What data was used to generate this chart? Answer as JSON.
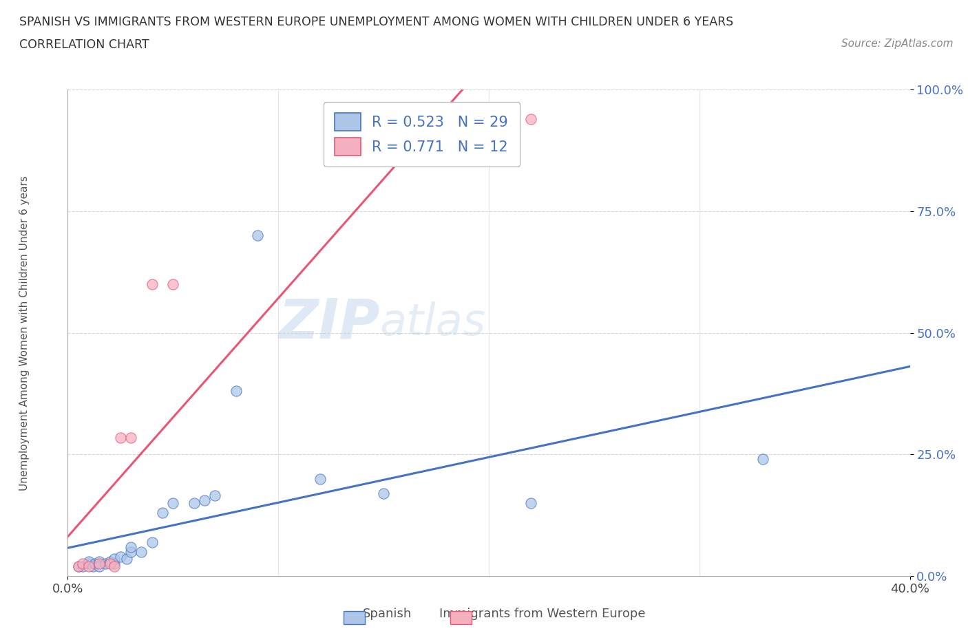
{
  "title_line1": "SPANISH VS IMMIGRANTS FROM WESTERN EUROPE UNEMPLOYMENT AMONG WOMEN WITH CHILDREN UNDER 6 YEARS",
  "title_line2": "CORRELATION CHART",
  "source": "Source: ZipAtlas.com",
  "ylabel_left": "Unemployment Among Women with Children Under 6 years",
  "xlim": [
    0.0,
    0.4
  ],
  "ylim": [
    0.0,
    1.0
  ],
  "legend_r1": "R = 0.523   N = 29",
  "legend_r2": "R = 0.771   N = 12",
  "spanish_color": "#adc6e8",
  "immigrant_color": "#f5b0c0",
  "trendline_spanish_color": "#4472c4",
  "trendline_immigrant_color": "#e85575",
  "watermark_zip": "ZIP",
  "watermark_atlas": "atlas",
  "spanish_x": [
    0.005,
    0.007,
    0.01,
    0.01,
    0.012,
    0.013,
    0.015,
    0.015,
    0.018,
    0.02,
    0.022,
    0.022,
    0.025,
    0.028,
    0.03,
    0.03,
    0.035,
    0.04,
    0.045,
    0.05,
    0.06,
    0.065,
    0.07,
    0.08,
    0.09,
    0.12,
    0.15,
    0.22,
    0.33
  ],
  "spanish_y": [
    0.02,
    0.02,
    0.025,
    0.03,
    0.02,
    0.025,
    0.03,
    0.02,
    0.025,
    0.03,
    0.025,
    0.035,
    0.04,
    0.035,
    0.05,
    0.06,
    0.05,
    0.07,
    0.13,
    0.15,
    0.15,
    0.155,
    0.165,
    0.38,
    0.7,
    0.2,
    0.17,
    0.15,
    0.24
  ],
  "immigrant_x": [
    0.005,
    0.007,
    0.01,
    0.015,
    0.02,
    0.022,
    0.025,
    0.03,
    0.04,
    0.05,
    0.13,
    0.22
  ],
  "immigrant_y": [
    0.02,
    0.025,
    0.02,
    0.025,
    0.025,
    0.02,
    0.285,
    0.285,
    0.6,
    0.6,
    0.94,
    0.94
  ],
  "xtick_positions": [
    0.0,
    0.4
  ],
  "xtick_labels": [
    "0.0%",
    "40.0%"
  ],
  "ytick_positions": [
    0.0,
    0.25,
    0.5,
    0.75,
    1.0
  ],
  "ytick_labels": [
    "0.0%",
    "25.0%",
    "50.0%",
    "75.0%",
    "100.0%"
  ]
}
